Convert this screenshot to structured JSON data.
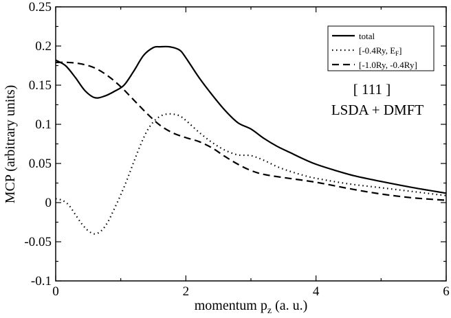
{
  "chart_data": {
    "type": "line",
    "title": "",
    "xlabel": "momentum p",
    "xlabel_sub": "z",
    "xlabel_suffix": " (a. u.)",
    "ylabel": "MCP (arbitrary units)",
    "xlim": [
      0,
      6
    ],
    "ylim": [
      -0.1,
      0.25
    ],
    "xticks": [
      0,
      2,
      4,
      6
    ],
    "xtick_labels": [
      "0",
      "2",
      "4",
      "6"
    ],
    "yticks": [
      -0.1,
      -0.05,
      0,
      0.05,
      0.1,
      0.15,
      0.2,
      0.25
    ],
    "ytick_labels": [
      "-0.1",
      "-0.05",
      "0",
      "0.05",
      "0.1",
      "0.15",
      "0.2",
      "0.25"
    ],
    "grid": false,
    "legend_position": "top-right",
    "annotations": [
      "[ 111 ]",
      "LSDA + DMFT"
    ],
    "series": [
      {
        "name": "total",
        "legend_main": "total",
        "legend_sub": "",
        "legend_tail": "",
        "style": "solid",
        "x": [
          0,
          0.15,
          0.3,
          0.45,
          0.6,
          0.75,
          0.9,
          1.05,
          1.2,
          1.35,
          1.5,
          1.6,
          1.75,
          1.9,
          2.0,
          2.2,
          2.4,
          2.6,
          2.8,
          3.0,
          3.2,
          3.4,
          3.6,
          3.8,
          4.0,
          4.3,
          4.6,
          5.0,
          5.5,
          6.0
        ],
        "y": [
          0.182,
          0.175,
          0.16,
          0.143,
          0.134,
          0.136,
          0.142,
          0.15,
          0.168,
          0.188,
          0.198,
          0.199,
          0.199,
          0.195,
          0.185,
          0.16,
          0.138,
          0.118,
          0.102,
          0.094,
          0.082,
          0.072,
          0.064,
          0.056,
          0.049,
          0.041,
          0.034,
          0.027,
          0.019,
          0.012
        ]
      },
      {
        "name": "[-0.4Ry, EF]",
        "legend_main": "[-0.4Ry, E",
        "legend_sub": "F",
        "legend_tail": "]",
        "style": "dotted",
        "x": [
          0,
          0.1,
          0.2,
          0.3,
          0.4,
          0.5,
          0.6,
          0.7,
          0.8,
          0.9,
          1.0,
          1.1,
          1.2,
          1.3,
          1.4,
          1.5,
          1.6,
          1.7,
          1.8,
          1.9,
          2.0,
          2.2,
          2.4,
          2.6,
          2.8,
          3.0,
          3.2,
          3.4,
          3.6,
          3.8,
          4.0,
          4.5,
          5.0,
          5.5,
          6.0
        ],
        "y": [
          0.005,
          0.003,
          -0.003,
          -0.015,
          -0.027,
          -0.036,
          -0.04,
          -0.036,
          -0.025,
          -0.008,
          0.01,
          0.03,
          0.052,
          0.073,
          0.091,
          0.103,
          0.11,
          0.113,
          0.113,
          0.111,
          0.105,
          0.09,
          0.077,
          0.067,
          0.061,
          0.06,
          0.054,
          0.046,
          0.04,
          0.035,
          0.031,
          0.024,
          0.019,
          0.014,
          0.009
        ]
      },
      {
        "name": "[-1.0Ry, -0.4Ry]",
        "legend_main": "[-1.0Ry, -0.4Ry]",
        "legend_sub": "",
        "legend_tail": "",
        "style": "dashed",
        "x": [
          0,
          0.2,
          0.4,
          0.6,
          0.8,
          1.0,
          1.2,
          1.4,
          1.6,
          1.8,
          2.0,
          2.2,
          2.4,
          2.6,
          2.8,
          3.0,
          3.2,
          3.5,
          4.0,
          4.5,
          5.0,
          5.5,
          6.0
        ],
        "y": [
          0.179,
          0.179,
          0.177,
          0.172,
          0.162,
          0.148,
          0.131,
          0.114,
          0.099,
          0.089,
          0.083,
          0.078,
          0.07,
          0.059,
          0.049,
          0.041,
          0.036,
          0.032,
          0.026,
          0.018,
          0.011,
          0.006,
          0.003
        ]
      }
    ]
  }
}
